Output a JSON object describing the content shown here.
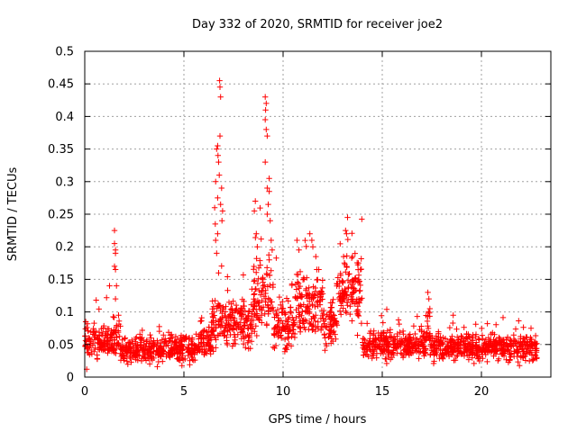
{
  "chart_data": {
    "type": "scatter",
    "title": "Day 332 of 2020, SRMTID for receiver joe2",
    "xlabel": "GPS time / hours",
    "ylabel": "SRMTID / TECUs",
    "xlim": [
      0,
      23.5
    ],
    "ylim": [
      0,
      0.5
    ],
    "xticks": [
      0,
      5,
      10,
      15,
      20
    ],
    "xtick_labels": [
      "0",
      "5",
      "10",
      "15",
      "20"
    ],
    "yticks": [
      0,
      0.05,
      0.1,
      0.15,
      0.2,
      0.25,
      0.3,
      0.35,
      0.4,
      0.45,
      0.5
    ],
    "ytick_labels": [
      "0",
      "0.05",
      "0.1",
      "0.15",
      "0.2",
      "0.25",
      "0.3",
      "0.35",
      "0.4",
      "0.45",
      "0.5"
    ],
    "grid": true,
    "marker": "+",
    "series": [
      {
        "name": "SRMTID",
        "color": "#ff0000",
        "segments": [
          {
            "x": [
              0.0,
              1.4
            ],
            "base": 0.055,
            "noise": 0.02
          },
          {
            "x": [
              1.4,
              1.8
            ],
            "base": 0.06,
            "noise": 0.03
          },
          {
            "x": [
              1.8,
              4.0
            ],
            "base": 0.04,
            "noise": 0.018
          },
          {
            "x": [
              4.0,
              5.8
            ],
            "base": 0.045,
            "noise": 0.02
          },
          {
            "x": [
              5.8,
              6.4
            ],
            "base": 0.06,
            "noise": 0.025
          },
          {
            "x": [
              6.4,
              7.0
            ],
            "base": 0.08,
            "noise": 0.04
          },
          {
            "x": [
              7.0,
              8.5
            ],
            "base": 0.085,
            "noise": 0.035
          },
          {
            "x": [
              8.5,
              9.5
            ],
            "base": 0.12,
            "noise": 0.05
          },
          {
            "x": [
              9.5,
              10.6
            ],
            "base": 0.08,
            "noise": 0.035
          },
          {
            "x": [
              10.6,
              12.0
            ],
            "base": 0.11,
            "noise": 0.04
          },
          {
            "x": [
              12.0,
              12.7
            ],
            "base": 0.08,
            "noise": 0.03
          },
          {
            "x": [
              12.7,
              14.0
            ],
            "base": 0.13,
            "noise": 0.045
          },
          {
            "x": [
              14.0,
              17.2
            ],
            "base": 0.05,
            "noise": 0.02
          },
          {
            "x": [
              17.2,
              17.4
            ],
            "base": 0.08,
            "noise": 0.03
          },
          {
            "x": [
              17.4,
              22.8
            ],
            "base": 0.045,
            "noise": 0.018
          }
        ],
        "spikes": [
          [
            0.05,
            0.085
          ],
          [
            0.1,
            0.012
          ],
          [
            1.1,
            0.122
          ],
          [
            1.25,
            0.14
          ],
          [
            1.5,
            0.225
          ],
          [
            1.5,
            0.205
          ],
          [
            1.55,
            0.195
          ],
          [
            1.55,
            0.19
          ],
          [
            1.5,
            0.17
          ],
          [
            1.55,
            0.165
          ],
          [
            1.6,
            0.14
          ],
          [
            1.55,
            0.12
          ],
          [
            6.55,
            0.26
          ],
          [
            6.6,
            0.3
          ],
          [
            6.65,
            0.35
          ],
          [
            6.7,
            0.355
          ],
          [
            6.72,
            0.34
          ],
          [
            6.75,
            0.33
          ],
          [
            6.8,
            0.455
          ],
          [
            6.82,
            0.445
          ],
          [
            6.85,
            0.43
          ],
          [
            6.82,
            0.37
          ],
          [
            6.78,
            0.31
          ],
          [
            6.7,
            0.275
          ],
          [
            6.9,
            0.29
          ],
          [
            6.85,
            0.265
          ],
          [
            6.6,
            0.21
          ],
          [
            6.65,
            0.19
          ],
          [
            6.75,
            0.16
          ],
          [
            6.95,
            0.255
          ],
          [
            6.92,
            0.24
          ],
          [
            6.58,
            0.235
          ],
          [
            6.7,
            0.22
          ],
          [
            8.6,
            0.27
          ],
          [
            8.55,
            0.255
          ],
          [
            8.65,
            0.22
          ],
          [
            8.7,
            0.2
          ],
          [
            9.1,
            0.43
          ],
          [
            9.15,
            0.42
          ],
          [
            9.12,
            0.41
          ],
          [
            9.1,
            0.395
          ],
          [
            9.15,
            0.38
          ],
          [
            9.2,
            0.37
          ],
          [
            9.1,
            0.33
          ],
          [
            9.2,
            0.29
          ],
          [
            9.3,
            0.305
          ],
          [
            9.3,
            0.285
          ],
          [
            9.25,
            0.265
          ],
          [
            9.35,
            0.24
          ],
          [
            9.4,
            0.21
          ],
          [
            9.45,
            0.195
          ],
          [
            9.2,
            0.25
          ],
          [
            9.3,
            0.18
          ],
          [
            10.7,
            0.21
          ],
          [
            10.8,
            0.195
          ],
          [
            11.35,
            0.22
          ],
          [
            11.45,
            0.21
          ],
          [
            11.5,
            0.2
          ],
          [
            11.7,
            0.165
          ],
          [
            11.8,
            0.165
          ],
          [
            11.65,
            0.185
          ],
          [
            13.15,
            0.225
          ],
          [
            13.25,
            0.245
          ],
          [
            13.2,
            0.22
          ],
          [
            13.05,
            0.185
          ],
          [
            13.5,
            0.185
          ],
          [
            13.8,
            0.175
          ],
          [
            13.9,
            0.165
          ],
          [
            17.3,
            0.13
          ],
          [
            17.35,
            0.12
          ],
          [
            17.4,
            0.105
          ],
          [
            20.3,
            0.082
          ],
          [
            22.5,
            0.075
          ]
        ]
      }
    ]
  }
}
